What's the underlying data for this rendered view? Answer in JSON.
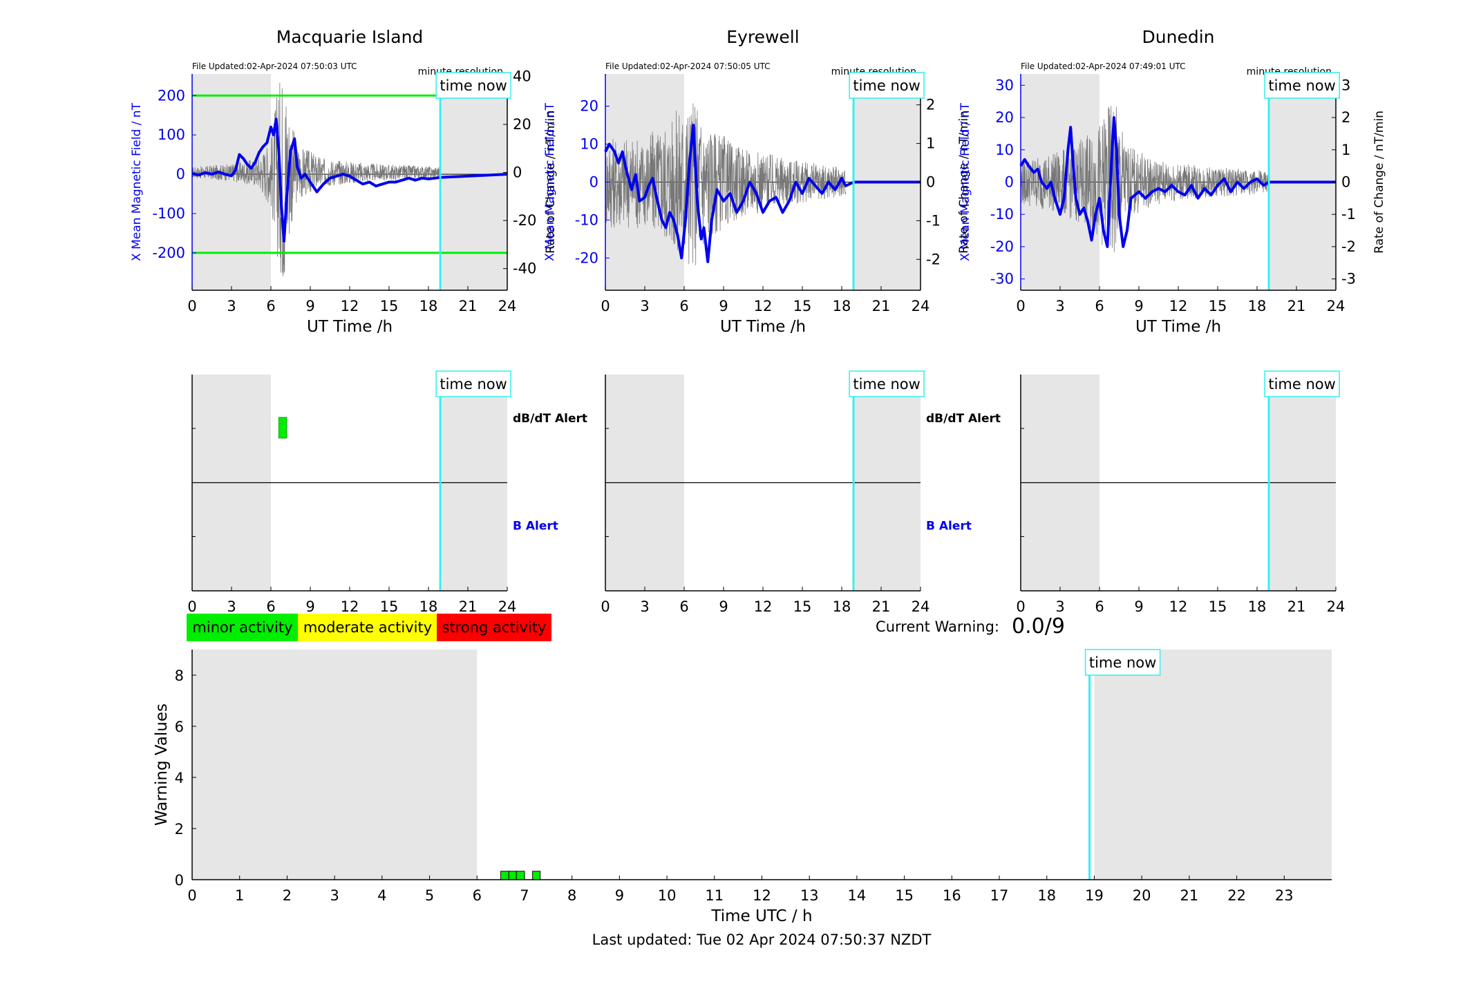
{
  "footer": {
    "last_updated": "Last updated: Tue 02 Apr 2024 07:50:37 NZDT"
  },
  "colors": {
    "mag": "#0000ee",
    "rate": "#777777",
    "now": "#33eeee",
    "night": "#e6e6e6",
    "threshold": "#00ee00",
    "minor": "#00ee00",
    "moderate": "#ffff00",
    "strong": "#ff0000"
  },
  "time_now_label": "time now",
  "time_now_h": 18.9,
  "stations": [
    {
      "title": "Macquarie Island",
      "file_updated": "File Updated:02-Apr-2024 07:50:03 UTC",
      "resolution": "minute resolution",
      "left_ylabel": "X Mean Magnetic Field / nT",
      "right_ylabel": "Rate of Change / nT/min",
      "xlabel": "UT Time /h",
      "ylim": [
        -295,
        255
      ],
      "yticks": [
        -200,
        -100,
        0,
        100,
        200
      ],
      "ytick_labels": [
        "-200",
        "-100",
        "0",
        "100",
        "200"
      ],
      "rlim": [
        -49,
        41
      ],
      "rticks": [
        -40,
        -20,
        0,
        20,
        40
      ],
      "rtick_labels": [
        "-40",
        "-20",
        "0",
        "20",
        "40"
      ],
      "thresholds": [
        200,
        -200
      ],
      "night": [
        [
          0,
          6
        ],
        [
          19,
          24
        ]
      ],
      "mag": [
        [
          0,
          2
        ],
        [
          0.5,
          -2
        ],
        [
          1,
          4
        ],
        [
          1.5,
          0
        ],
        [
          2,
          6
        ],
        [
          2.5,
          0
        ],
        [
          3,
          -4
        ],
        [
          3.3,
          10
        ],
        [
          3.6,
          50
        ],
        [
          3.9,
          40
        ],
        [
          4.2,
          25
        ],
        [
          4.5,
          15
        ],
        [
          4.8,
          30
        ],
        [
          5.1,
          55
        ],
        [
          5.4,
          70
        ],
        [
          5.7,
          80
        ],
        [
          6.0,
          120
        ],
        [
          6.2,
          100
        ],
        [
          6.4,
          140
        ],
        [
          6.6,
          60
        ],
        [
          6.8,
          -80
        ],
        [
          7.0,
          -170
        ],
        [
          7.2,
          -60
        ],
        [
          7.5,
          60
        ],
        [
          7.8,
          90
        ],
        [
          8.0,
          20
        ],
        [
          8.3,
          -10
        ],
        [
          8.6,
          0
        ],
        [
          9.0,
          -20
        ],
        [
          9.5,
          -45
        ],
        [
          10,
          -25
        ],
        [
          10.5,
          -10
        ],
        [
          11,
          -5
        ],
        [
          11.5,
          0
        ],
        [
          12,
          -5
        ],
        [
          12.5,
          -15
        ],
        [
          13,
          -25
        ],
        [
          13.5,
          -20
        ],
        [
          14,
          -30
        ],
        [
          14.5,
          -25
        ],
        [
          15,
          -20
        ],
        [
          15.5,
          -20
        ],
        [
          16,
          -15
        ],
        [
          16.5,
          -10
        ],
        [
          17,
          -15
        ],
        [
          17.5,
          -10
        ],
        [
          18,
          -12
        ],
        [
          18.5,
          -10
        ],
        [
          18.9,
          -8
        ],
        [
          24,
          0
        ]
      ],
      "rate_amp": [
        [
          0,
          2
        ],
        [
          3,
          3
        ],
        [
          5,
          5
        ],
        [
          6,
          12
        ],
        [
          6.5,
          30
        ],
        [
          7,
          40
        ],
        [
          7.5,
          20
        ],
        [
          8,
          10
        ],
        [
          10,
          5
        ],
        [
          14,
          3
        ],
        [
          18.9,
          2
        ]
      ],
      "alert_blocks": [
        {
          "type": "dBdT",
          "start": 6.6,
          "end": 7.2
        }
      ]
    },
    {
      "title": "Eyrewell",
      "file_updated": "File Updated:02-Apr-2024 07:50:05 UTC",
      "resolution": "minute resolution",
      "left_ylabel": "X Mean Magnetic Field / nT",
      "right_ylabel": "Rate of Change / nT/min",
      "xlabel": "UT Time /h",
      "ylim": [
        -28.5,
        28.5
      ],
      "yticks": [
        -20,
        -10,
        0,
        10,
        20
      ],
      "ytick_labels": [
        "-20",
        "-10",
        "0",
        "10",
        "20"
      ],
      "rlim": [
        -2.8,
        2.8
      ],
      "rticks": [
        -2,
        -1,
        0,
        1,
        2
      ],
      "rtick_labels": [
        "-2",
        "-1",
        "0",
        "1",
        "2"
      ],
      "thresholds": [],
      "night": [
        [
          0,
          6
        ],
        [
          19,
          24
        ]
      ],
      "mag": [
        [
          0,
          8
        ],
        [
          0.3,
          10
        ],
        [
          0.7,
          8
        ],
        [
          1,
          5
        ],
        [
          1.3,
          8
        ],
        [
          1.6,
          3
        ],
        [
          2,
          -2
        ],
        [
          2.3,
          2
        ],
        [
          2.6,
          -5
        ],
        [
          3,
          -4
        ],
        [
          3.3,
          -1
        ],
        [
          3.6,
          1
        ],
        [
          3.9,
          -4
        ],
        [
          4.3,
          -10
        ],
        [
          4.6,
          -12
        ],
        [
          4.9,
          -8
        ],
        [
          5.2,
          -10
        ],
        [
          5.5,
          -14
        ],
        [
          5.8,
          -20
        ],
        [
          6.1,
          -10
        ],
        [
          6.4,
          5
        ],
        [
          6.7,
          15
        ],
        [
          7.0,
          -5
        ],
        [
          7.3,
          -15
        ],
        [
          7.5,
          -12
        ],
        [
          7.8,
          -21
        ],
        [
          8.1,
          -10
        ],
        [
          8.5,
          -2
        ],
        [
          9,
          -5
        ],
        [
          9.5,
          -3
        ],
        [
          10,
          -8
        ],
        [
          10.5,
          -5
        ],
        [
          11,
          0
        ],
        [
          11.5,
          -3
        ],
        [
          12,
          -8
        ],
        [
          12.5,
          -5
        ],
        [
          13,
          -4
        ],
        [
          13.5,
          -8
        ],
        [
          14,
          -5
        ],
        [
          14.5,
          0
        ],
        [
          15,
          -3
        ],
        [
          15.5,
          1
        ],
        [
          16,
          -1
        ],
        [
          16.5,
          -3
        ],
        [
          17,
          0
        ],
        [
          17.5,
          -2
        ],
        [
          18,
          1
        ],
        [
          18.3,
          -1
        ],
        [
          18.9,
          0
        ],
        [
          24,
          0
        ]
      ],
      "rate_amp": [
        [
          0,
          1
        ],
        [
          3,
          1
        ],
        [
          5,
          1.4
        ],
        [
          6,
          1.8
        ],
        [
          7,
          1.8
        ],
        [
          8,
          1.2
        ],
        [
          10,
          0.8
        ],
        [
          14,
          0.5
        ],
        [
          18.3,
          0.3
        ]
      ],
      "alert_blocks": []
    },
    {
      "title": "Dunedin",
      "file_updated": "File Updated:02-Apr-2024 07:49:01 UTC",
      "resolution": "minute resolution",
      "left_ylabel": "X Mean Magnetic Field / nT",
      "right_ylabel": "Rate of Change / nT/min",
      "xlabel": "UT Time /h",
      "ylim": [
        -33.5,
        33.5
      ],
      "yticks": [
        -30,
        -20,
        -10,
        0,
        10,
        20,
        30
      ],
      "ytick_labels": [
        "-30",
        "-20",
        "-10",
        "0",
        "10",
        "20",
        "30"
      ],
      "rlim": [
        -3.35,
        3.35
      ],
      "rticks": [
        -3,
        -2,
        -1,
        0,
        1,
        2,
        3
      ],
      "rtick_labels": [
        "-3",
        "-2",
        "-1",
        "0",
        "1",
        "2",
        "3"
      ],
      "thresholds": [],
      "night": [
        [
          0,
          6
        ],
        [
          19,
          24
        ]
      ],
      "mag": [
        [
          0,
          5
        ],
        [
          0.3,
          7
        ],
        [
          0.6,
          5
        ],
        [
          1,
          3
        ],
        [
          1.3,
          4
        ],
        [
          1.6,
          0
        ],
        [
          2,
          -2
        ],
        [
          2.3,
          0
        ],
        [
          2.6,
          -5
        ],
        [
          3,
          -10
        ],
        [
          3.3,
          -5
        ],
        [
          3.6,
          10
        ],
        [
          3.8,
          17
        ],
        [
          4.0,
          5
        ],
        [
          4.2,
          -5
        ],
        [
          4.5,
          -10
        ],
        [
          4.8,
          -8
        ],
        [
          5.1,
          -12
        ],
        [
          5.4,
          -18
        ],
        [
          5.7,
          -10
        ],
        [
          6.0,
          -5
        ],
        [
          6.3,
          -15
        ],
        [
          6.6,
          -20
        ],
        [
          6.9,
          5
        ],
        [
          7.1,
          20
        ],
        [
          7.3,
          10
        ],
        [
          7.5,
          -10
        ],
        [
          7.8,
          -20
        ],
        [
          8.1,
          -15
        ],
        [
          8.4,
          -5
        ],
        [
          9,
          -3
        ],
        [
          9.5,
          -5
        ],
        [
          10,
          -3
        ],
        [
          10.5,
          -2
        ],
        [
          11,
          -3
        ],
        [
          11.5,
          -1
        ],
        [
          12,
          -3
        ],
        [
          12.5,
          -4
        ],
        [
          13,
          -1
        ],
        [
          13.5,
          -5
        ],
        [
          14,
          -2
        ],
        [
          14.5,
          -4
        ],
        [
          15,
          -1
        ],
        [
          15.5,
          1
        ],
        [
          16,
          -3
        ],
        [
          16.5,
          0
        ],
        [
          17,
          -2
        ],
        [
          17.5,
          0
        ],
        [
          18,
          1
        ],
        [
          18.5,
          -1
        ],
        [
          18.9,
          0
        ],
        [
          24,
          0
        ]
      ],
      "rate_amp": [
        [
          0,
          0.6
        ],
        [
          3,
          0.8
        ],
        [
          5,
          1.2
        ],
        [
          6,
          1.5
        ],
        [
          7,
          2.2
        ],
        [
          7.5,
          1.8
        ],
        [
          8,
          1.0
        ],
        [
          10,
          0.6
        ],
        [
          14,
          0.4
        ],
        [
          18.9,
          0.3
        ]
      ],
      "alert_blocks": []
    }
  ],
  "alert_panels": {
    "dbdt_label": "dB/dT Alert",
    "b_label": "B Alert",
    "xticks": [
      0,
      3,
      6,
      9,
      12,
      15,
      18,
      21,
      24
    ],
    "xtick_labels": [
      "0",
      "3",
      "6",
      "9",
      "12",
      "15",
      "18",
      "21",
      "24"
    ]
  },
  "legend": [
    {
      "label": "minor activity",
      "color": "#00ee00"
    },
    {
      "label": "moderate activity",
      "color": "#ffff00"
    },
    {
      "label": "strong activity",
      "color": "#ff0000"
    }
  ],
  "current_warning": {
    "label": "Current Warning:",
    "value": "0.0/9"
  },
  "chart_data": [
    {
      "type": "line",
      "title": "Macquarie Island",
      "xlabel": "UT Time /h",
      "ylabel": "X Mean Magnetic Field / nT",
      "y2label": "Rate of Change / nT/min",
      "xlim": [
        0,
        24
      ],
      "ylim": [
        -295,
        255
      ]
    },
    {
      "type": "line",
      "title": "Eyrewell",
      "xlabel": "UT Time /h",
      "ylabel": "X Mean Magnetic Field / nT",
      "y2label": "Rate of Change / nT/min",
      "xlim": [
        0,
        24
      ],
      "ylim": [
        -28.5,
        28.5
      ]
    },
    {
      "type": "line",
      "title": "Dunedin",
      "xlabel": "UT Time /h",
      "ylabel": "X Mean Magnetic Field / nT",
      "y2label": "Rate of Change / nT/min",
      "xlim": [
        0,
        24
      ],
      "ylim": [
        -33.5,
        33.5
      ]
    },
    {
      "type": "bar",
      "xlabel": "Time UTC / h",
      "ylabel": "Warning Values",
      "xlim": [
        0,
        24
      ],
      "ylim": [
        0,
        9
      ],
      "xticks": [
        0,
        1,
        2,
        3,
        4,
        5,
        6,
        7,
        8,
        9,
        10,
        11,
        12,
        13,
        14,
        15,
        16,
        17,
        18,
        19,
        20,
        21,
        22,
        23
      ],
      "xtick_labels": [
        "0",
        "1",
        "2",
        "3",
        "4",
        "5",
        "6",
        "7",
        "8",
        "9",
        "10",
        "11",
        "12",
        "13",
        "14",
        "15",
        "16",
        "17",
        "18",
        "19",
        "20",
        "21",
        "22",
        "23"
      ],
      "yticks": [
        0,
        2,
        4,
        6,
        8
      ],
      "ytick_labels": [
        "0",
        "2",
        "4",
        "6",
        "8"
      ],
      "night": [
        [
          0,
          6
        ],
        [
          19,
          24
        ]
      ],
      "bars": [
        {
          "start": 6.5,
          "end": 6.67,
          "value": 0.33,
          "color": "#00ee00"
        },
        {
          "start": 6.67,
          "end": 6.83,
          "value": 0.33,
          "color": "#00ee00"
        },
        {
          "start": 6.83,
          "end": 7.0,
          "value": 0.33,
          "color": "#00ee00"
        },
        {
          "start": 7.17,
          "end": 7.33,
          "value": 0.33,
          "color": "#00ee00"
        }
      ]
    }
  ]
}
